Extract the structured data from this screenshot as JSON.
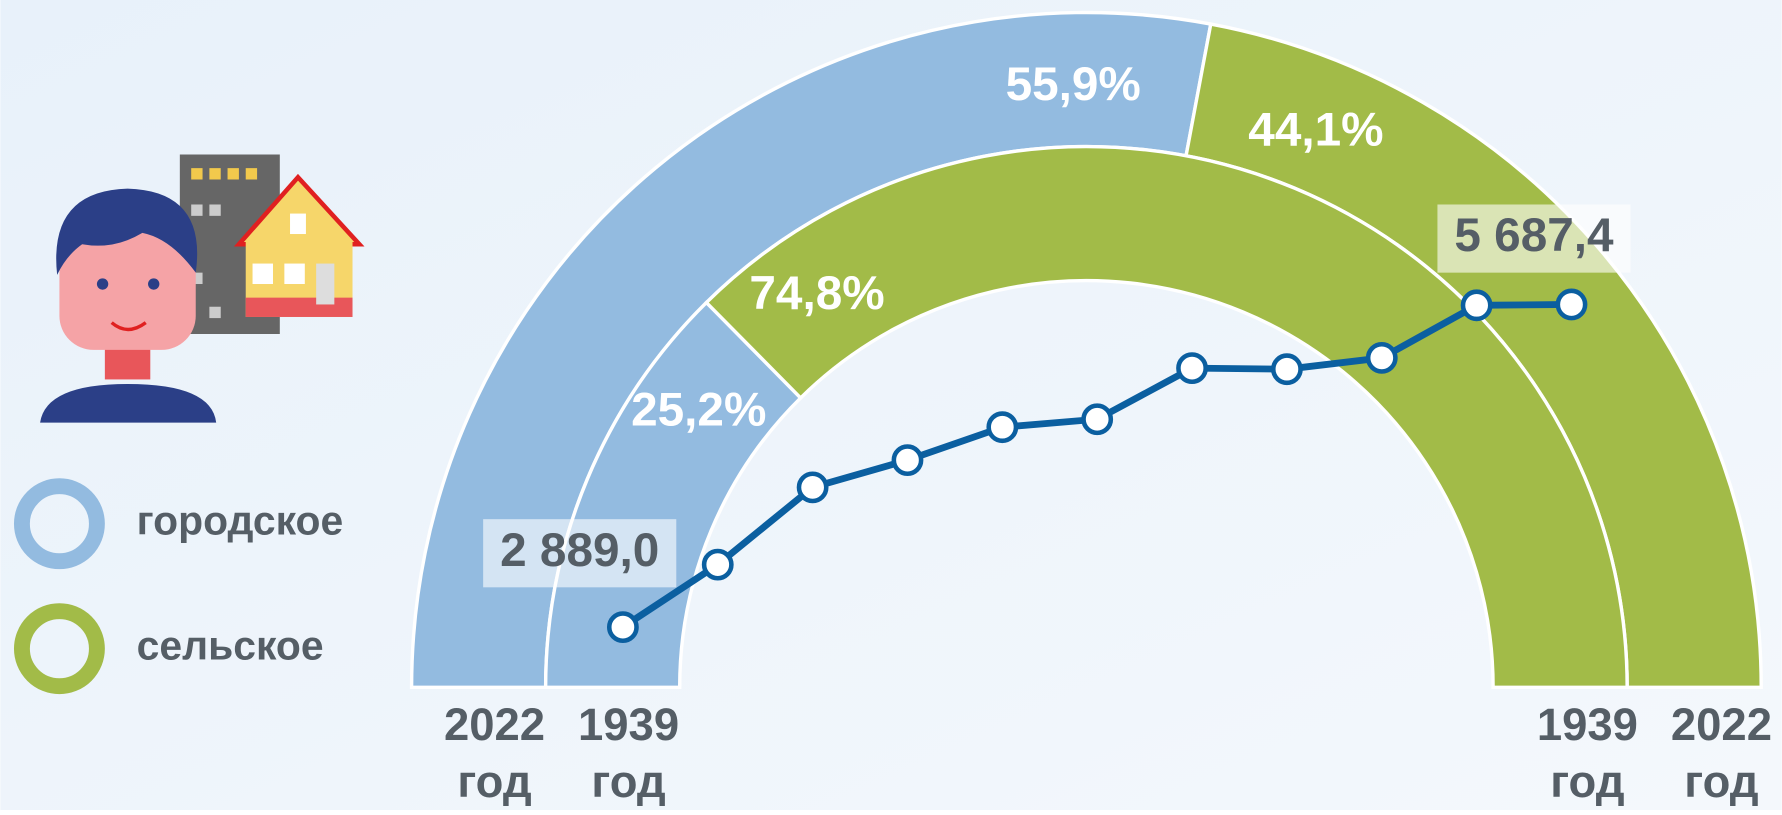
{
  "chart_data": [
    {
      "type": "donut",
      "categories": [
        "городское",
        "сельское"
      ],
      "colors": [
        "#93bbe0",
        "#a2bb48"
      ],
      "rings": [
        {
          "label": [
            "2022",
            "год"
          ],
          "values": [
            55.9,
            44.1
          ],
          "value_labels": [
            "55,9%",
            "44,1%"
          ]
        },
        {
          "label": [
            "1939",
            "год"
          ],
          "values": [
            25.2,
            74.8
          ],
          "value_labels": [
            "25,2%",
            "74,8%"
          ]
        }
      ]
    },
    {
      "type": "line",
      "color": "#0b5fa0",
      "categories": [
        null,
        null,
        null,
        null,
        null,
        null,
        null,
        null,
        null,
        null,
        null
      ],
      "values": [
        2889.0,
        3431,
        4101,
        4337,
        4623,
        4692,
        5135,
        5126,
        5224,
        5680,
        5687.4
      ],
      "value_labels": [
        "2 889,0",
        null,
        null,
        null,
        null,
        null,
        null,
        null,
        null,
        null,
        "5 687,4"
      ]
    }
  ]
}
